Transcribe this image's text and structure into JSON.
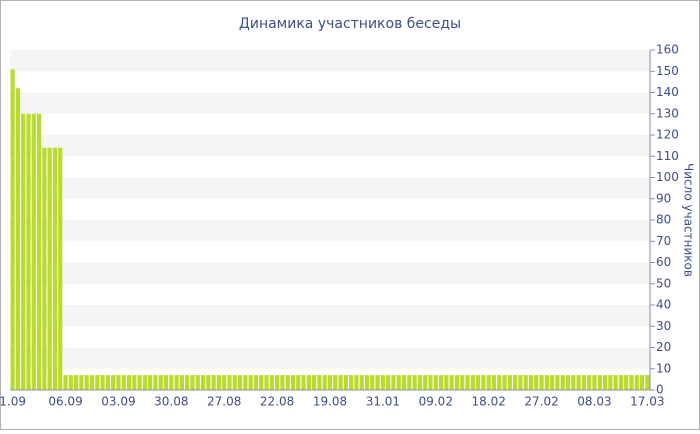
{
  "chart_data": {
    "type": "bar",
    "title": "Динамика участников беседы",
    "y_label": "Число участников",
    "categories": [
      "1.09",
      null,
      null,
      null,
      null,
      null,
      null,
      null,
      null,
      null,
      "06.09",
      null,
      null,
      null,
      null,
      null,
      null,
      null,
      null,
      null,
      "03.09",
      null,
      null,
      null,
      null,
      null,
      null,
      null,
      null,
      null,
      "30.08",
      null,
      null,
      null,
      null,
      null,
      null,
      null,
      null,
      null,
      "27.08",
      null,
      null,
      null,
      null,
      null,
      null,
      null,
      null,
      null,
      "22.08",
      null,
      null,
      null,
      null,
      null,
      null,
      null,
      null,
      null,
      "19.08",
      null,
      null,
      null,
      null,
      null,
      null,
      null,
      null,
      null,
      "31.01",
      null,
      null,
      null,
      null,
      null,
      null,
      null,
      null,
      null,
      "09.02",
      null,
      null,
      null,
      null,
      null,
      null,
      null,
      null,
      null,
      "18.02",
      null,
      null,
      null,
      null,
      null,
      null,
      null,
      null,
      null,
      "27.02",
      null,
      null,
      null,
      null,
      null,
      null,
      null,
      null,
      null,
      "08.03",
      null,
      null,
      null,
      null,
      null,
      null,
      null,
      null,
      null,
      "17.03"
    ],
    "values": [
      151,
      142,
      130,
      130,
      130,
      130,
      114,
      114,
      114,
      114,
      7,
      7,
      7,
      7,
      7,
      7,
      7,
      7,
      7,
      7,
      7,
      7,
      7,
      7,
      7,
      7,
      7,
      7,
      7,
      7,
      7,
      7,
      7,
      7,
      7,
      7,
      7,
      7,
      7,
      7,
      7,
      7,
      7,
      7,
      7,
      7,
      7,
      7,
      7,
      7,
      7,
      7,
      7,
      7,
      7,
      7,
      7,
      7,
      7,
      7,
      7,
      7,
      7,
      7,
      7,
      7,
      7,
      7,
      7,
      7,
      7,
      7,
      7,
      7,
      7,
      7,
      7,
      7,
      7,
      7,
      7,
      7,
      7,
      7,
      7,
      7,
      7,
      7,
      7,
      7,
      7,
      7,
      7,
      7,
      7,
      7,
      7,
      7,
      7,
      7,
      7,
      7,
      7,
      7,
      7,
      7,
      7,
      7,
      7,
      7,
      7,
      7,
      7,
      7,
      7,
      7,
      7,
      7,
      7,
      7,
      7
    ],
    "color": "#b8dc2e",
    "ylim": [
      0,
      160
    ],
    "yticks": [
      0,
      10,
      20,
      30,
      40,
      50,
      60,
      70,
      80,
      90,
      100,
      110,
      120,
      130,
      140,
      150,
      160
    ],
    "y_axis_side": "right",
    "grid": "bands"
  }
}
